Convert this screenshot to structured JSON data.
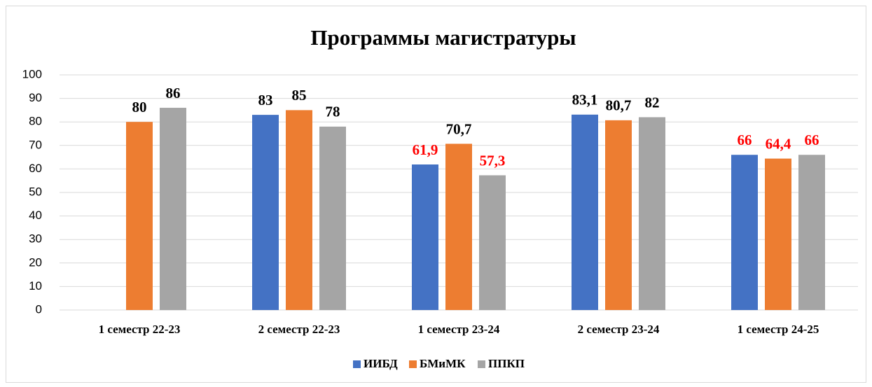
{
  "chart_data": {
    "type": "bar",
    "title": "Программы магистратуры",
    "categories": [
      "1 семестр 22-23",
      "2 семестр 22-23",
      "1 семестр 23-24",
      "2 семестр 23-24",
      "1 семестр 24-25"
    ],
    "series": [
      {
        "name": "ИИБД",
        "color": "#4472c4",
        "values": [
          null,
          83,
          61.9,
          83.1,
          66
        ],
        "value_labels": [
          null,
          "83",
          "61,9",
          "83,1",
          "66"
        ],
        "label_colors": [
          null,
          "#000000",
          "#ff0000",
          "#000000",
          "#ff0000"
        ]
      },
      {
        "name": "БМиМК",
        "color": "#ed7d31",
        "values": [
          80,
          85,
          70.7,
          80.7,
          64.4
        ],
        "value_labels": [
          "80",
          "85",
          "70,7",
          "80,7",
          "64,4"
        ],
        "label_colors": [
          "#000000",
          "#000000",
          "#000000",
          "#000000",
          "#ff0000"
        ]
      },
      {
        "name": "ППКП",
        "color": "#a5a5a5",
        "values": [
          86,
          78,
          57.3,
          82,
          66
        ],
        "value_labels": [
          "86",
          "78",
          "57,3",
          "82",
          "66"
        ],
        "label_colors": [
          "#000000",
          "#000000",
          "#ff0000",
          "#000000",
          "#ff0000"
        ]
      }
    ],
    "ylim": [
      0,
      100
    ],
    "yticks": [
      0,
      10,
      20,
      30,
      40,
      50,
      60,
      70,
      80,
      90,
      100
    ],
    "grid": true,
    "legend": "bottom"
  }
}
